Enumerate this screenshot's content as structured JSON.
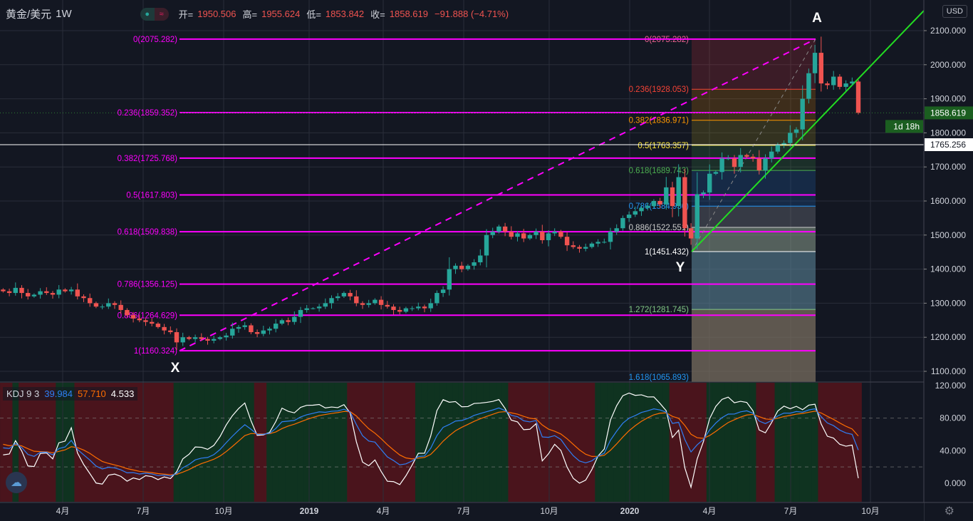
{
  "header": {
    "symbol": "黄金/美元",
    "timeframe": "1W",
    "open_label": "开=",
    "open": "1950.506",
    "high_label": "高=",
    "high": "1955.624",
    "low_label": "低=",
    "low": "1853.842",
    "close_label": "收=",
    "close": "1858.619",
    "change": "−91.888 (−4.71%)"
  },
  "currency_button": "USD",
  "colors": {
    "up": "#26a69a",
    "down": "#ef5350",
    "fib_main": "#ff00ff",
    "trend": "#22dd22",
    "background": "#131722"
  },
  "kdj": {
    "name": "KDJ 9 3",
    "k": "39.984",
    "d": "57.710",
    "j": "4.533",
    "k_color": "#2962ff",
    "d_color": "#ff6d00",
    "j_color": "#ffffff"
  },
  "chart_data": {
    "type": "candlestick",
    "x_ticks": [
      "4月",
      "7月",
      "10月",
      "2019",
      "4月",
      "7月",
      "10月",
      "2020",
      "4月",
      "7月",
      "10月"
    ],
    "y_ticks": [
      "2100.000",
      "2000.000",
      "1900.000",
      "1800.000",
      "1700.000",
      "1600.000",
      "1500.000",
      "1400.000",
      "1300.000",
      "1200.000",
      "1100.000"
    ],
    "ylim": [
      1100,
      2100
    ],
    "kdj_ticks": [
      "120.000",
      "80.000",
      "40.000",
      "0.000"
    ],
    "last_price": "1858.619",
    "countdown": "1d 18h",
    "crosshair_price": "1765.256",
    "weekly_close": [
      1335,
      1330,
      1345,
      1330,
      1320,
      1325,
      1335,
      1330,
      1325,
      1340,
      1335,
      1340,
      1320,
      1315,
      1300,
      1290,
      1290,
      1300,
      1295,
      1280,
      1265,
      1255,
      1250,
      1245,
      1240,
      1230,
      1220,
      1215,
      1185,
      1200,
      1195,
      1200,
      1195,
      1190,
      1195,
      1200,
      1205,
      1225,
      1230,
      1235,
      1215,
      1210,
      1220,
      1225,
      1240,
      1250,
      1245,
      1260,
      1280,
      1285,
      1285,
      1290,
      1300,
      1315,
      1320,
      1330,
      1320,
      1300,
      1295,
      1300,
      1310,
      1295,
      1290,
      1280,
      1275,
      1285,
      1285,
      1290,
      1285,
      1300,
      1330,
      1340,
      1400,
      1410,
      1400,
      1410,
      1420,
      1440,
      1500,
      1510,
      1525,
      1510,
      1495,
      1505,
      1490,
      1500,
      1510,
      1485,
      1505,
      1510,
      1495,
      1470,
      1465,
      1460,
      1465,
      1475,
      1480,
      1480,
      1510,
      1520,
      1550,
      1560,
      1570,
      1580,
      1585,
      1600,
      1590,
      1640,
      1585,
      1670,
      1520,
      1490,
      1620,
      1625,
      1680,
      1685,
      1725,
      1725,
      1700,
      1735,
      1730,
      1725,
      1690,
      1725,
      1745,
      1765,
      1770,
      1800,
      1810,
      1900,
      1975,
      2035,
      1945,
      1940,
      1965,
      1935,
      1945,
      1950.506,
      1858.619
    ]
  },
  "fib_main": {
    "levels": [
      {
        "label": "0(2075.282)",
        "price": 2075.282
      },
      {
        "label": "0.236(1859.352)",
        "price": 1859.352
      },
      {
        "label": "0.382(1725.768)",
        "price": 1725.768
      },
      {
        "label": "0.5(1617.803)",
        "price": 1617.803
      },
      {
        "label": "0.618(1509.838)",
        "price": 1509.838
      },
      {
        "label": "0.786(1356.125)",
        "price": 1356.125
      },
      {
        "label": "0.886(1264.629)",
        "price": 1264.629
      },
      {
        "label": "1(1160.324)",
        "price": 1160.324
      }
    ]
  },
  "fib_right": {
    "levels": [
      {
        "label": "0(2075.282)",
        "price": 2075.282,
        "color": "#f06292",
        "fill": "rgba(242,54,69,0.18)"
      },
      {
        "label": "0.236(1928.053)",
        "price": 1928.053,
        "color": "#f44336",
        "fill": "rgba(255,152,0,0.18)"
      },
      {
        "label": "0.382(1836.971)",
        "price": 1836.971,
        "color": "#ff9800",
        "fill": "rgba(200,180,30,0.18)"
      },
      {
        "label": "0.5(1763.357)",
        "price": 1763.357,
        "color": "#ffeb3b",
        "fill": "rgba(76,175,80,0.16)"
      },
      {
        "label": "0.618(1689.743)",
        "price": 1689.743,
        "color": "#4caf50",
        "fill": "rgba(33,100,180,0.25)"
      },
      {
        "label": "0.786(1584.936)",
        "price": 1584.936,
        "color": "#2196f3",
        "fill": "rgba(120,123,134,0.35)"
      },
      {
        "label": "0.886(1522.551)",
        "price": 1522.551,
        "color": "#cccccc",
        "fill": "rgba(150,170,150,0.5)"
      },
      {
        "label": "1(1451.432)",
        "price": 1451.432,
        "color": "#ffffff",
        "fill": "rgba(90,130,150,0.6)"
      },
      {
        "label": "1.272(1281.745)",
        "price": 1281.745,
        "color": "#81c784",
        "fill": "rgba(120,110,95,0.75)"
      },
      {
        "label": "1.618(1065.893)",
        "price": 1065.893,
        "color": "#2196f3",
        "fill": null
      }
    ]
  },
  "points": {
    "x": "X",
    "y": "Y",
    "a": "A"
  }
}
